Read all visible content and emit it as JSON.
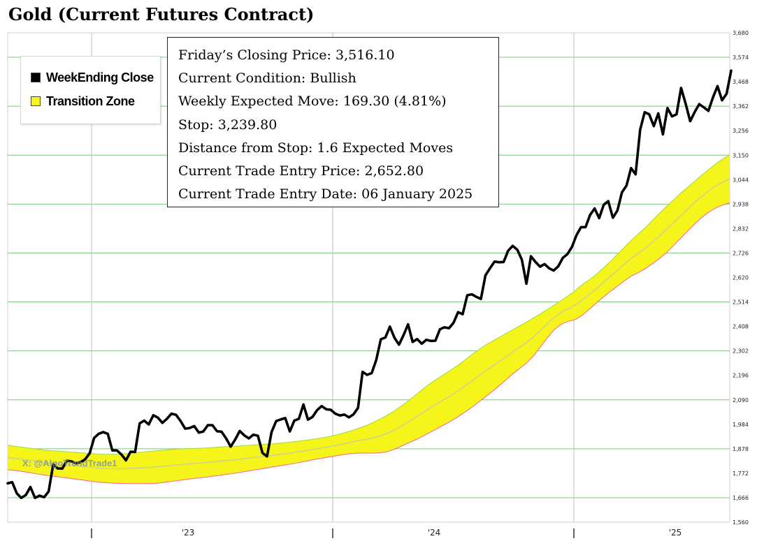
{
  "title": "Gold (Current Futures Contract)",
  "legend": {
    "items": [
      {
        "label": "WeekEnding Close",
        "color": "#000000"
      },
      {
        "label": "Transition Zone",
        "color": "#f5f51c"
      }
    ]
  },
  "info_box": {
    "lines": [
      "Friday’s Closing Price: 3,516.10",
      "Current Condition: Bullish",
      "Weekly Expected Move: 169.30 (4.81%)",
      "Stop: 3,239.80",
      "Distance from Stop: 1.6 Expected Moves",
      "Current Trade Entry Price: 2,652.80",
      "Current Trade Entry Date: 06 January 2025"
    ]
  },
  "watermark": "X: @AlgoTrendTrade1",
  "colors": {
    "grid_h": "#7fc47f",
    "grid_v": "#bdbdbd",
    "zone_fill": "#f5f51c",
    "zone_upper": "#9ad94a",
    "zone_lower": "#ff5f8f",
    "zone_mid": "#cfcf8e",
    "price_line": "#000000"
  },
  "chart_data": {
    "type": "line",
    "title": "Gold (Current Futures Contract)",
    "ylim": [
      1560,
      3680
    ],
    "y_ticks": [
      "1,560",
      "1,666",
      "1,772",
      "1,878",
      "1,984",
      "2,090",
      "2,196",
      "2,302",
      "2,408",
      "2,514",
      "2,620",
      "2,726",
      "2,832",
      "2,938",
      "3,044",
      "3,150",
      "3,256",
      "3,362",
      "3,468",
      "3,574",
      "3,680"
    ],
    "x_labels": [
      "'23",
      "'24",
      "'25"
    ],
    "series": [
      {
        "name": "WeekEnding Close",
        "values": [
          1728,
          1733,
          1685,
          1665,
          1678,
          1712,
          1665,
          1675,
          1668,
          1693,
          1810,
          1793,
          1792,
          1826,
          1823,
          1815,
          1820,
          1832,
          1858,
          1925,
          1943,
          1950,
          1943,
          1871,
          1871,
          1853,
          1828,
          1865,
          1864,
          1988,
          2000,
          1983,
          2023,
          2013,
          1990,
          2008,
          2030,
          2025,
          1998,
          1965,
          1968,
          1976,
          1948,
          1953,
          1980,
          1980,
          1954,
          1952,
          1923,
          1887,
          1918,
          1955,
          1936,
          1923,
          1939,
          1934,
          1860,
          1845,
          1950,
          1998,
          2005,
          2011,
          1953,
          2000,
          2008,
          2070,
          2004,
          2016,
          2045,
          2063,
          2049,
          2047,
          2030,
          2022,
          2026,
          2014,
          2027,
          2055,
          2211,
          2198,
          2206,
          2263,
          2352,
          2360,
          2407,
          2359,
          2329,
          2370,
          2417,
          2341,
          2353,
          2333,
          2350,
          2345,
          2346,
          2396,
          2404,
          2400,
          2424,
          2470,
          2461,
          2543,
          2547,
          2536,
          2527,
          2629,
          2660,
          2689,
          2686,
          2687,
          2736,
          2757,
          2740,
          2697,
          2593,
          2712,
          2687,
          2667,
          2678,
          2660,
          2650,
          2668,
          2705,
          2721,
          2752,
          2803,
          2838,
          2838,
          2891,
          2919,
          2877,
          2935,
          2951,
          2879,
          2910,
          2989,
          3018,
          3094,
          3067,
          3260,
          3336,
          3327,
          3276,
          3331,
          3240,
          3354,
          3318,
          3327,
          3441,
          3373,
          3297,
          3337,
          3371,
          3357,
          3342,
          3400,
          3449,
          3388,
          3416,
          3516
        ]
      }
    ],
    "transition_zone": {
      "upper": [
        1893,
        1889,
        1885,
        1881,
        1877,
        1873,
        1870,
        1868,
        1866,
        1864,
        1862,
        1859,
        1857,
        1855,
        1854,
        1854,
        1855,
        1857,
        1860,
        1863,
        1866,
        1869,
        1872,
        1874,
        1876,
        1878,
        1879,
        1880,
        1881,
        1883,
        1885,
        1887,
        1888,
        1890,
        1892,
        1894,
        1896,
        1898,
        1900,
        1903,
        1906,
        1909,
        1913,
        1917,
        1921,
        1926,
        1932,
        1939,
        1947,
        1956,
        1966,
        1977,
        1990,
        2005,
        2021,
        2039,
        2060,
        2082,
        2106,
        2131,
        2155,
        2176,
        2195,
        2215,
        2235,
        2257,
        2281,
        2303,
        2324,
        2342,
        2359,
        2376,
        2393,
        2410,
        2427,
        2445,
        2463,
        2482,
        2501,
        2521,
        2542,
        2564,
        2590,
        2611,
        2634,
        2662,
        2690,
        2721,
        2752,
        2782,
        2810,
        2837,
        2868,
        2899,
        2928,
        2957,
        2985,
        3011,
        3037,
        3063,
        3088,
        3112,
        3134,
        3151
      ],
      "lower": [
        1787,
        1784,
        1780,
        1775,
        1770,
        1765,
        1761,
        1757,
        1753,
        1749,
        1745,
        1741,
        1737,
        1733,
        1731,
        1729,
        1728,
        1727,
        1727,
        1727,
        1727,
        1728,
        1731,
        1735,
        1739,
        1743,
        1747,
        1751,
        1754,
        1758,
        1762,
        1766,
        1770,
        1775,
        1780,
        1785,
        1790,
        1795,
        1800,
        1805,
        1810,
        1815,
        1821,
        1827,
        1833,
        1838,
        1843,
        1848,
        1853,
        1857,
        1859,
        1859,
        1859,
        1860,
        1864,
        1874,
        1887,
        1901,
        1914,
        1929,
        1945,
        1961,
        1978,
        1994,
        2012,
        2032,
        2053,
        2076,
        2099,
        2123,
        2148,
        2174,
        2201,
        2225,
        2249,
        2280,
        2319,
        2359,
        2395,
        2418,
        2430,
        2438,
        2457,
        2483,
        2510,
        2536,
        2560,
        2583,
        2606,
        2627,
        2641,
        2659,
        2680,
        2703,
        2728,
        2759,
        2790,
        2821,
        2852,
        2880,
        2903,
        2921,
        2934,
        2944
      ]
    }
  }
}
